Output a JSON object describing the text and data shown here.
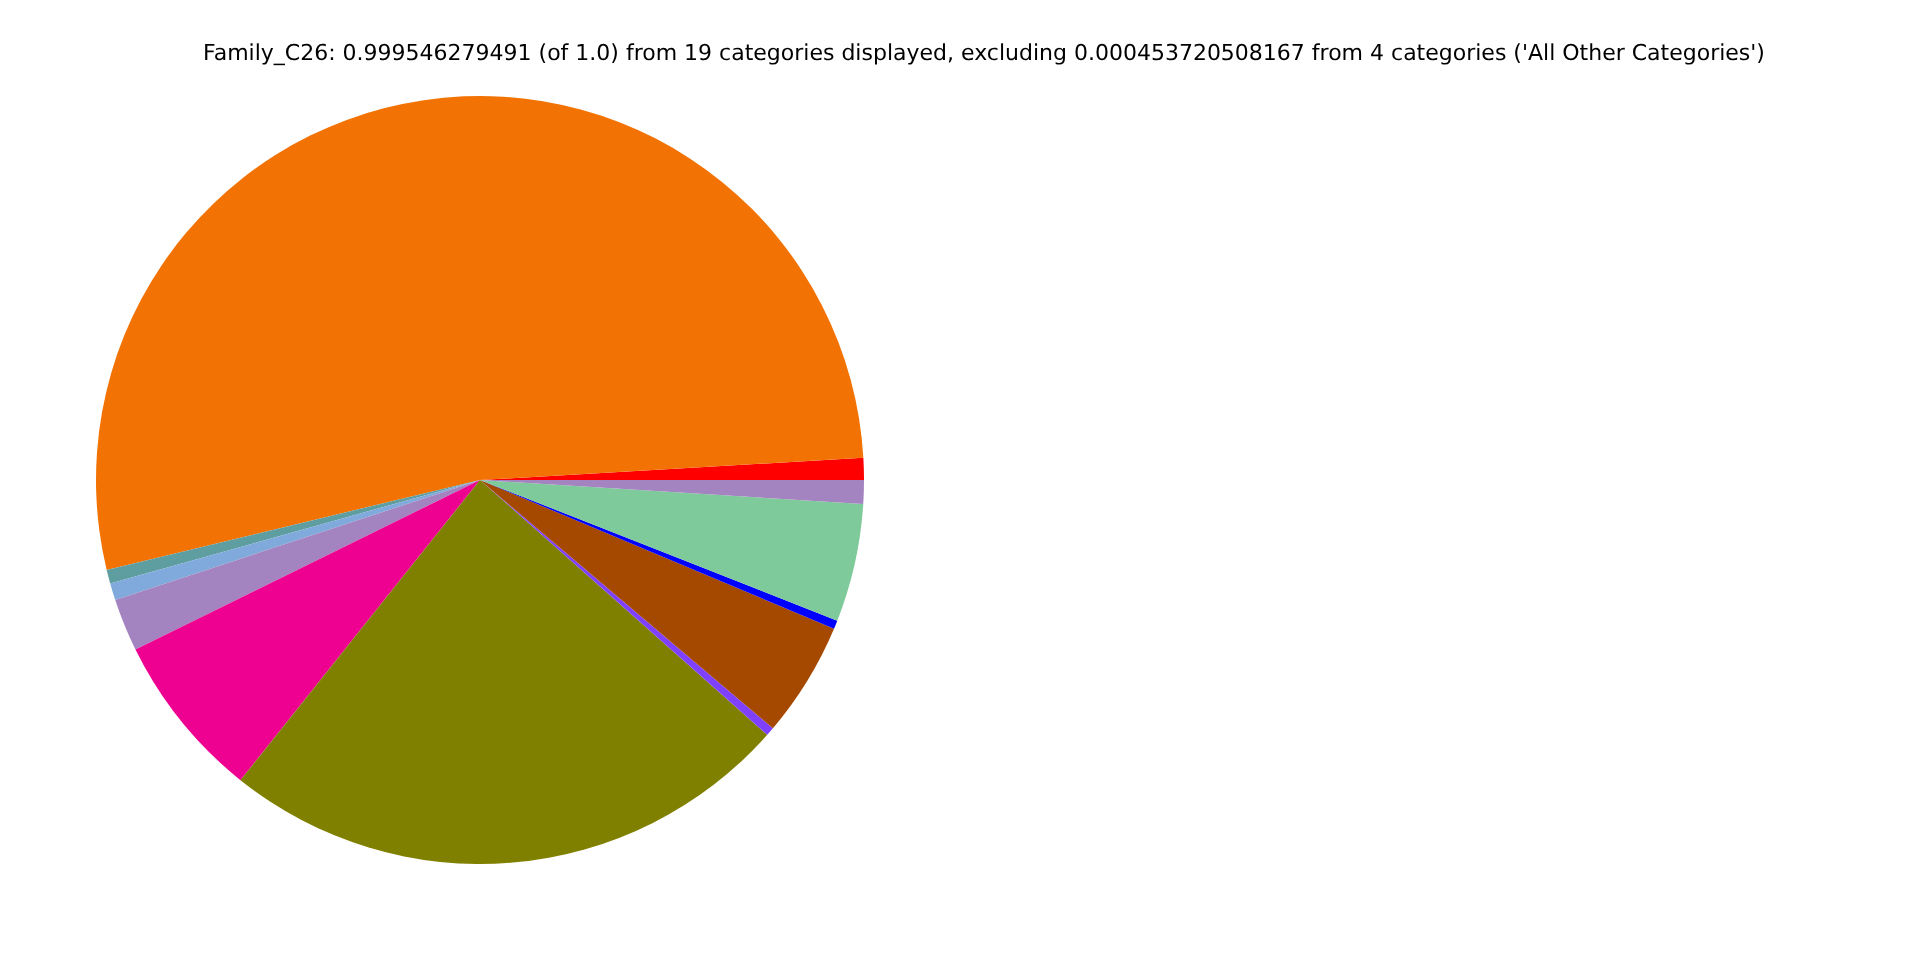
{
  "chart_data": {
    "type": "pie",
    "title": "Family_C26: 0.999546279491 (of 1.0) from 19 categories displayed, excluding 0.000453720508167 from 4 categories ('All Other Categories')",
    "categories": [
      null,
      null,
      null,
      null,
      null,
      null,
      null,
      null,
      null,
      null,
      null,
      null
    ],
    "values": [
      0.92,
      52.84,
      0.58,
      0.72,
      2.22,
      7.0,
      24.17,
      0.36,
      4.86,
      0.36,
      4.97,
      1.0
    ],
    "colors": [
      "#ff0000",
      "#f27304",
      "#5f9ea0",
      "#7faadb",
      "#a383c0",
      "#ee0090",
      "#808000",
      "#8040ff",
      "#a64900",
      "#0000ff",
      "#7fca9a",
      "#a383c0"
    ]
  }
}
